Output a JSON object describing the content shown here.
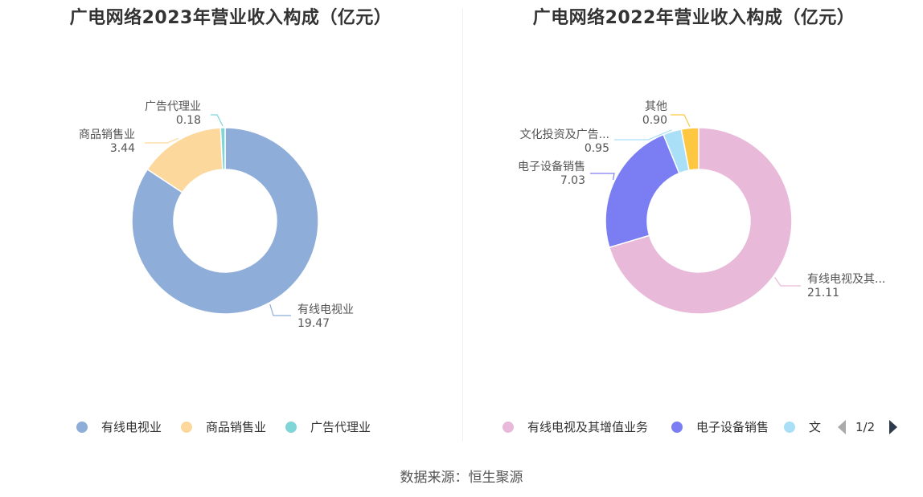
{
  "chart_data": [
    {
      "type": "pie",
      "donut": true,
      "title": "广电网络2023年营业收入构成（亿元）",
      "series": [
        {
          "name": "有线电视业",
          "label": "有线电视业",
          "value": 19.47,
          "value_label": "19.47",
          "color": "#8eadd9"
        },
        {
          "name": "商品销售业",
          "label": "商品销售业",
          "value": 3.44,
          "value_label": "3.44",
          "color": "#fdd89c"
        },
        {
          "name": "广告代理业",
          "label": "广告代理业",
          "value": 0.18,
          "value_label": "0.18",
          "color": "#80d5d7"
        }
      ],
      "legend": {
        "position": "bottom",
        "items": [
          "有线电视业",
          "商品销售业",
          "广告代理业"
        ]
      }
    },
    {
      "type": "pie",
      "donut": true,
      "title": "广电网络2022年营业收入构成（亿元）",
      "series": [
        {
          "name": "有线电视及其增值业务",
          "label": "有线电视及其...",
          "value": 21.11,
          "value_label": "21.11",
          "color": "#e9b9d9"
        },
        {
          "name": "电子设备销售",
          "label": "电子设备销售",
          "value": 7.03,
          "value_label": "7.03",
          "color": "#7b7ef2"
        },
        {
          "name": "文化投资及广告...",
          "label": "文化投资及广告...",
          "value": 0.95,
          "value_label": "0.95",
          "color": "#a9dff7"
        },
        {
          "name": "其他",
          "label": "其他",
          "value": 0.9,
          "value_label": "0.90",
          "color": "#fdc741"
        }
      ],
      "legend": {
        "position": "bottom",
        "items": [
          "有线电视及其增值业务",
          "电子设备销售",
          "文"
        ],
        "pager": "1/2"
      }
    }
  ],
  "footer": {
    "source": "数据来源：恒生聚源"
  }
}
